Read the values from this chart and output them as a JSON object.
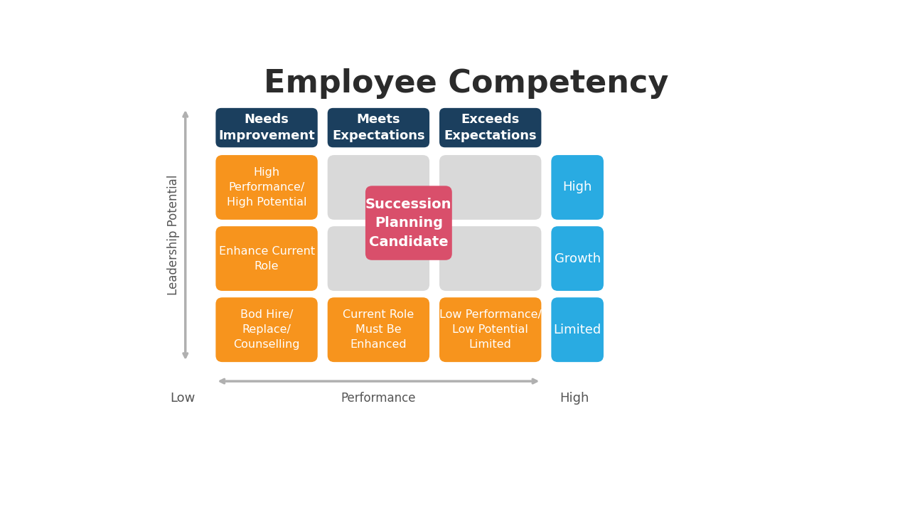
{
  "title": "Employee Competency",
  "title_fontsize": 32,
  "title_fontweight": "bold",
  "title_color": "#2b2b2b",
  "background_color": "#ffffff",
  "header_color": "#1b3f5e",
  "header_text_color": "#ffffff",
  "header_labels": [
    "Needs\nImprovement",
    "Meets\nExpectations",
    "Exceeds\nExpectations"
  ],
  "orange_color": "#F7941D",
  "gray_color": "#D9D9D9",
  "blue_color": "#29ABE2",
  "red_color": "#D94F6B",
  "orange_cells": [
    {
      "row": 0,
      "col": 0,
      "text": "High\nPerformance/\nHigh Potential"
    },
    {
      "row": 1,
      "col": 0,
      "text": "Enhance Current\nRole"
    },
    {
      "row": 2,
      "col": 0,
      "text": "Bod Hire/\nReplace/\nCounselling"
    },
    {
      "row": 2,
      "col": 1,
      "text": "Current Role\nMust Be\nEnhanced"
    },
    {
      "row": 2,
      "col": 2,
      "text": "Low Performance/\nLow Potential\nLimited"
    }
  ],
  "gray_cells": [
    {
      "row": 0,
      "col": 1
    },
    {
      "row": 0,
      "col": 2
    },
    {
      "row": 1,
      "col": 1
    },
    {
      "row": 1,
      "col": 2
    }
  ],
  "red_cell_text": "Succession\nPlanning\nCandidate",
  "blue_labels": [
    "High",
    "Growth",
    "Limited"
  ],
  "axis_label_performance": "Performance",
  "axis_label_leadership": "Leadership Potential",
  "axis_low": "Low",
  "axis_high": "High"
}
